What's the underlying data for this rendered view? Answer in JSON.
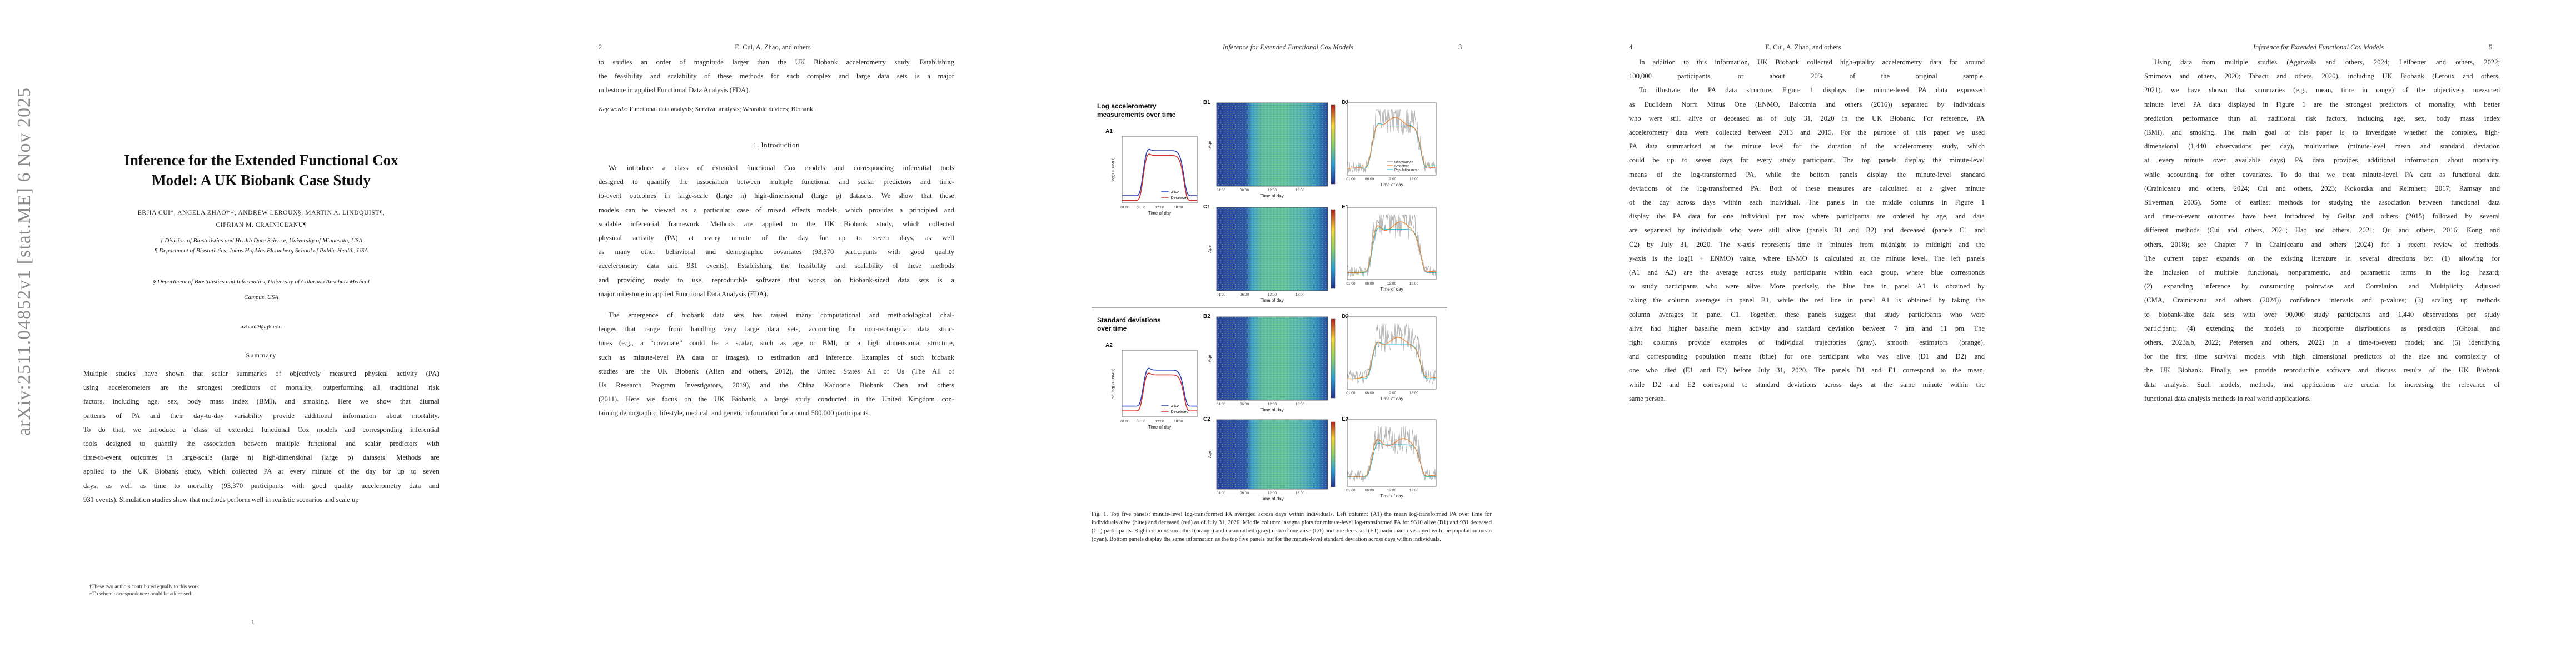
{
  "arxiv_id": "arXiv:2511.04852v1  [stat.ME]  6 Nov 2025",
  "page1": {
    "title_line1": "Inference for the Extended Functional Cox",
    "title_line2": "Model: A UK Biobank Case Study",
    "authors_line1": "ERJIA CUI†, ANGELA ZHAO†∗, ANDREW LEROUX§, MARTIN A. LINDQUIST¶,",
    "authors_line2": "CIPRIAN M. CRAINICEANU¶",
    "affil1": "† Division of Biostatistics and Health Data Science, University of Minnesota, USA",
    "affil2": "¶ Department of Biostatistics, Johns Hopkins Bloomberg School of Public Health, USA",
    "affil3_line1": "§ Department of Biostatistics and Informatics, University of Colorado Anschutz Medical",
    "affil3_line2": "Campus, USA",
    "email": "azhao29@jh.edu",
    "summary_heading": "Summary",
    "summary_lines": [
      "Multiple studies have shown that scalar summaries of objectively measured physical activity (PA)",
      "using accelerometers are the strongest predictors of mortality, outperforming all traditional risk",
      "factors, including age, sex, body mass index (BMI), and smoking. Here we show that diurnal",
      "patterns of PA and their day-to-day variability provide additional information about mortality.",
      "To do that, we introduce a class of extended functional Cox models and corresponding inferential",
      "tools designed to quantify the association between multiple functional and scalar predictors with",
      "time-to-event outcomes in large-scale (large n) high-dimensional (large p) datasets. Methods are",
      "applied to the UK Biobank study, which collected PA at every minute of the day for up to seven",
      "days, as well as time to mortality (93,370 participants with good quality accelerometry data and",
      "931 events). Simulation studies show that methods perform well in realistic scenarios and scale up"
    ],
    "footnote1": "†These two authors contributed equally to this work",
    "footnote2": "∗To whom correspondence should be addressed.",
    "page_number": "1"
  },
  "page2": {
    "page_number": "2",
    "running_head": "E. Cui, A. Zhao, and others",
    "intro_lines": [
      "to studies an order of magnitude larger than the UK Biobank accelerometry study. Establishing",
      "the feasibility and scalability of these methods for such complex and large data sets is a major",
      "milestone in applied Functional Data Analysis (FDA)."
    ],
    "keywords_label": "Key words:",
    "keywords": "Functional data analysis; Survival analysis; Wearable devices; Biobank.",
    "section_heading": "1. Introduction",
    "para1_lines": [
      "We introduce a class of extended functional Cox models and corresponding inferential tools",
      "designed to quantify the association between multiple functional and scalar predictors and time-",
      "to-event outcomes in large-scale (large n) high-dimensional (large p) datasets. We show that these",
      "models can be viewed as a particular case of mixed effects models, which provides a principled and",
      "scalable inferential framework. Methods are applied to the UK Biobank study, which collected",
      "physical activity (PA) at every minute of the day for up to seven days, as well",
      "as many other behavioral and demographic covariates (93,370 participants with good quality",
      "accelerometry data and 931 events). Establishing the feasibility and scalability of these methods",
      "and providing ready to use, reproducible software that works on biobank-sized data sets is a",
      "major milestone in applied Functional Data Analysis (FDA)."
    ],
    "para2_lines": [
      "The emergence of biobank data sets has raised many computational and methodological chal-",
      "lenges that range from handling very large data sets, accounting for non-rectangular data struc-",
      "tures (e.g., a “covariate” could be a scalar, such as age or BMI, or a high dimensional structure,",
      "such as minute-level PA data or images), to estimation and inference. Examples of such biobank",
      "studies are the UK Biobank (Allen and others, 2012), the United States All of Us (The All of",
      "Us Research Program Investigators, 2019), and the China Kadoorie Biobank Chen and others",
      "(2011). Here we focus on the UK Biobank, a large study conducted in the United Kingdom con-",
      "taining demographic, lifestyle, medical, and genetic information for around 500,000 participants."
    ]
  },
  "page3": {
    "page_number": "3",
    "running_head": "Inference for Extended Functional Cox Models",
    "caption": "Fig. 1. Top five panels: minute-level log-transformed PA averaged across days within individuals. Left column: (A1) the mean log-transformed PA over time for individuals alive (blue) and deceased (red) as of July 31, 2020. Middle column: lasagna plots for minute-level log-transformed PA for 9310 alive (B1) and 931 deceased (C1) participants. Right column: smoothed (orange) and unsmoothed (gray) data of one alive (D1) and one deceased (E1) participant overlayed with the population mean (cyan). Bottom panels display the same information as the top five panels but for the minute-level standard deviation across days within individuals.",
    "figure": {
      "top_heading_line1": "Log accelerometry",
      "top_heading_line2": "measurements over time",
      "bottom_heading_line1": "Standard deviations",
      "bottom_heading_line2": "over time",
      "panel_labels": [
        "A1",
        "B1",
        "C1",
        "D1",
        "E1",
        "A2",
        "B2",
        "C2",
        "D2",
        "E2"
      ],
      "time_ticks": [
        "01:00",
        "06:00",
        "12:00",
        "18:00"
      ],
      "xlabel": "Time of day",
      "ylabel_top": "log(1+ENMO)",
      "ylabel_bottom": "sd_log(1+ENMO)",
      "ylabel_row": "Age",
      "legend_alive": "Alive",
      "legend_deceased": "Deceased",
      "legend_unsmoothed": "Unsmoothed",
      "legend_smoothed": "Smoothed",
      "legend_popmean": "Population mean",
      "colors": {
        "alive": "#2b3fb8",
        "deceased": "#d0312d",
        "smoothed": "#f07f22",
        "unsmoothed": "#9e9e9e",
        "popmean": "#36b9d4"
      }
    }
  },
  "page4": {
    "page_number": "4",
    "running_head": "E. Cui, A. Zhao, and others",
    "lines": [
      "In addition to this information, UK Biobank collected high-quality accelerometry data for around",
      "100,000 participants, or about 20% of the original sample.",
      "To illustrate the PA data structure, Figure 1 displays the minute-level PA data expressed",
      "as Euclidean Norm Minus One (ENMO, Balcomia and others (2016)) separated by individuals",
      "who were still alive or deceased as of July 31, 2020 in the UK Biobank. For reference, PA",
      "accelerometry data were collected between 2013 and 2015. For the purpose of this paper we used",
      "PA data summarized at the minute level for the duration of the accelerometry study, which",
      "could be up to seven days for every study participant. The top panels display the minute-level",
      "means of the log-transformed PA, while the bottom panels display the minute-level standard",
      "deviations of the log-transformed PA. Both of these measures are calculated at a given minute",
      "of the day across days within each individual. The panels in the middle columns in Figure 1",
      "display the PA data for one individual per row where participants are ordered by age, and data",
      "are separated by individuals who were still alive (panels B1 and B2) and deceased (panels C1 and",
      "C2) by July 31, 2020. The x-axis represents time in minutes from midnight to midnight and the",
      "y-axis is the log(1 + ENMO) value, where ENMO is calculated at the minute level. The left panels",
      "(A1 and A2) are the average across study participants within each group, where blue corresponds",
      "to study participants who were alive. More precisely, the blue line in panel A1 is obtained by",
      "taking the column averages in panel B1, while the red line in panel A1 is obtained by taking the",
      "column averages in panel C1. Together, these panels suggest that study participants who were",
      "alive had higher baseline mean activity and standard deviation between 7 am and 11 pm. The",
      "right columns provide examples of individual trajectories (gray), smooth estimators (orange),",
      "and corresponding population means (blue) for one participant who was alive (D1 and D2) and",
      "one who died (E1 and E2) before July 31, 2020. The panels D1 and E1 correspond to the mean,",
      "while D2 and E2 correspond to standard deviations across days at the same minute within the",
      "same person."
    ],
    "indent_lines": [
      2
    ]
  },
  "page5": {
    "page_number": "5",
    "running_head": "Inference for Extended Functional Cox Models",
    "lines": [
      "Using data from multiple studies (Agarwala and others, 2024; Leilbetter and others, 2022;",
      "Smirnova and others, 2020; Tabacu and others, 2020), including UK Biobank (Leroux and others,",
      "2021), we have shown that summaries (e.g., mean, time in range) of the objectively measured",
      "minute level PA data displayed in Figure 1 are the strongest predictors of mortality, with better",
      "prediction performance than all traditional risk factors, including age, sex, body mass index",
      "(BMI), and smoking. The main goal of this paper is to investigate whether the complex, high-",
      "dimensional (1,440 observations per day), multivariate (minute-level mean and standard deviation",
      "at every minute over available days) PA data provides additional information about mortality,",
      "while accounting for other covariates. To do that we treat minute-level PA data as functional data",
      "(Crainiceanu and others, 2024; Cui and others, 2023; Kokoszka and Reimherr, 2017; Ramsay and",
      "Silverman, 2005). Some of earliest methods for studying the association between functional data",
      "and time-to-event outcomes have been introduced by Gellar and others (2015) followed by several",
      "different methods (Cui and others, 2021; Hao and others, 2021; Qu and others, 2016; Kong and",
      "others, 2018); see Chapter 7 in Crainiceanu and others (2024) for a recent review of methods.",
      "The current paper expands on the existing literature in several directions by: (1) allowing for",
      "the inclusion of multiple functional, nonparametric, and parametric terms in the log hazard;",
      "(2) expanding inference by constructing pointwise and Correlation and Multiplicity Adjusted",
      "(CMA, Crainiceanu and others (2024)) confidence intervals and p-values; (3) scaling up methods",
      "to biobank-size data sets with over 90,000 study participants and 1,440 observations per study",
      "participant; (4) extending the models to incorporate distributions as predictors (Ghosal and",
      "others, 2023a,b, 2022; Petersen and others, 2022) in a time-to-event model; and (5) identifying",
      "for the first time survival models with high dimensional predictors of the size and complexity of",
      "the UK Biobank. Finally, we provide reproducible software and discuss results of the UK Biobank",
      "data analysis. Such models, methods, and applications are crucial for increasing the relevance of",
      "functional data analysis methods in real world applications."
    ],
    "indent_lines": [
      0
    ]
  }
}
